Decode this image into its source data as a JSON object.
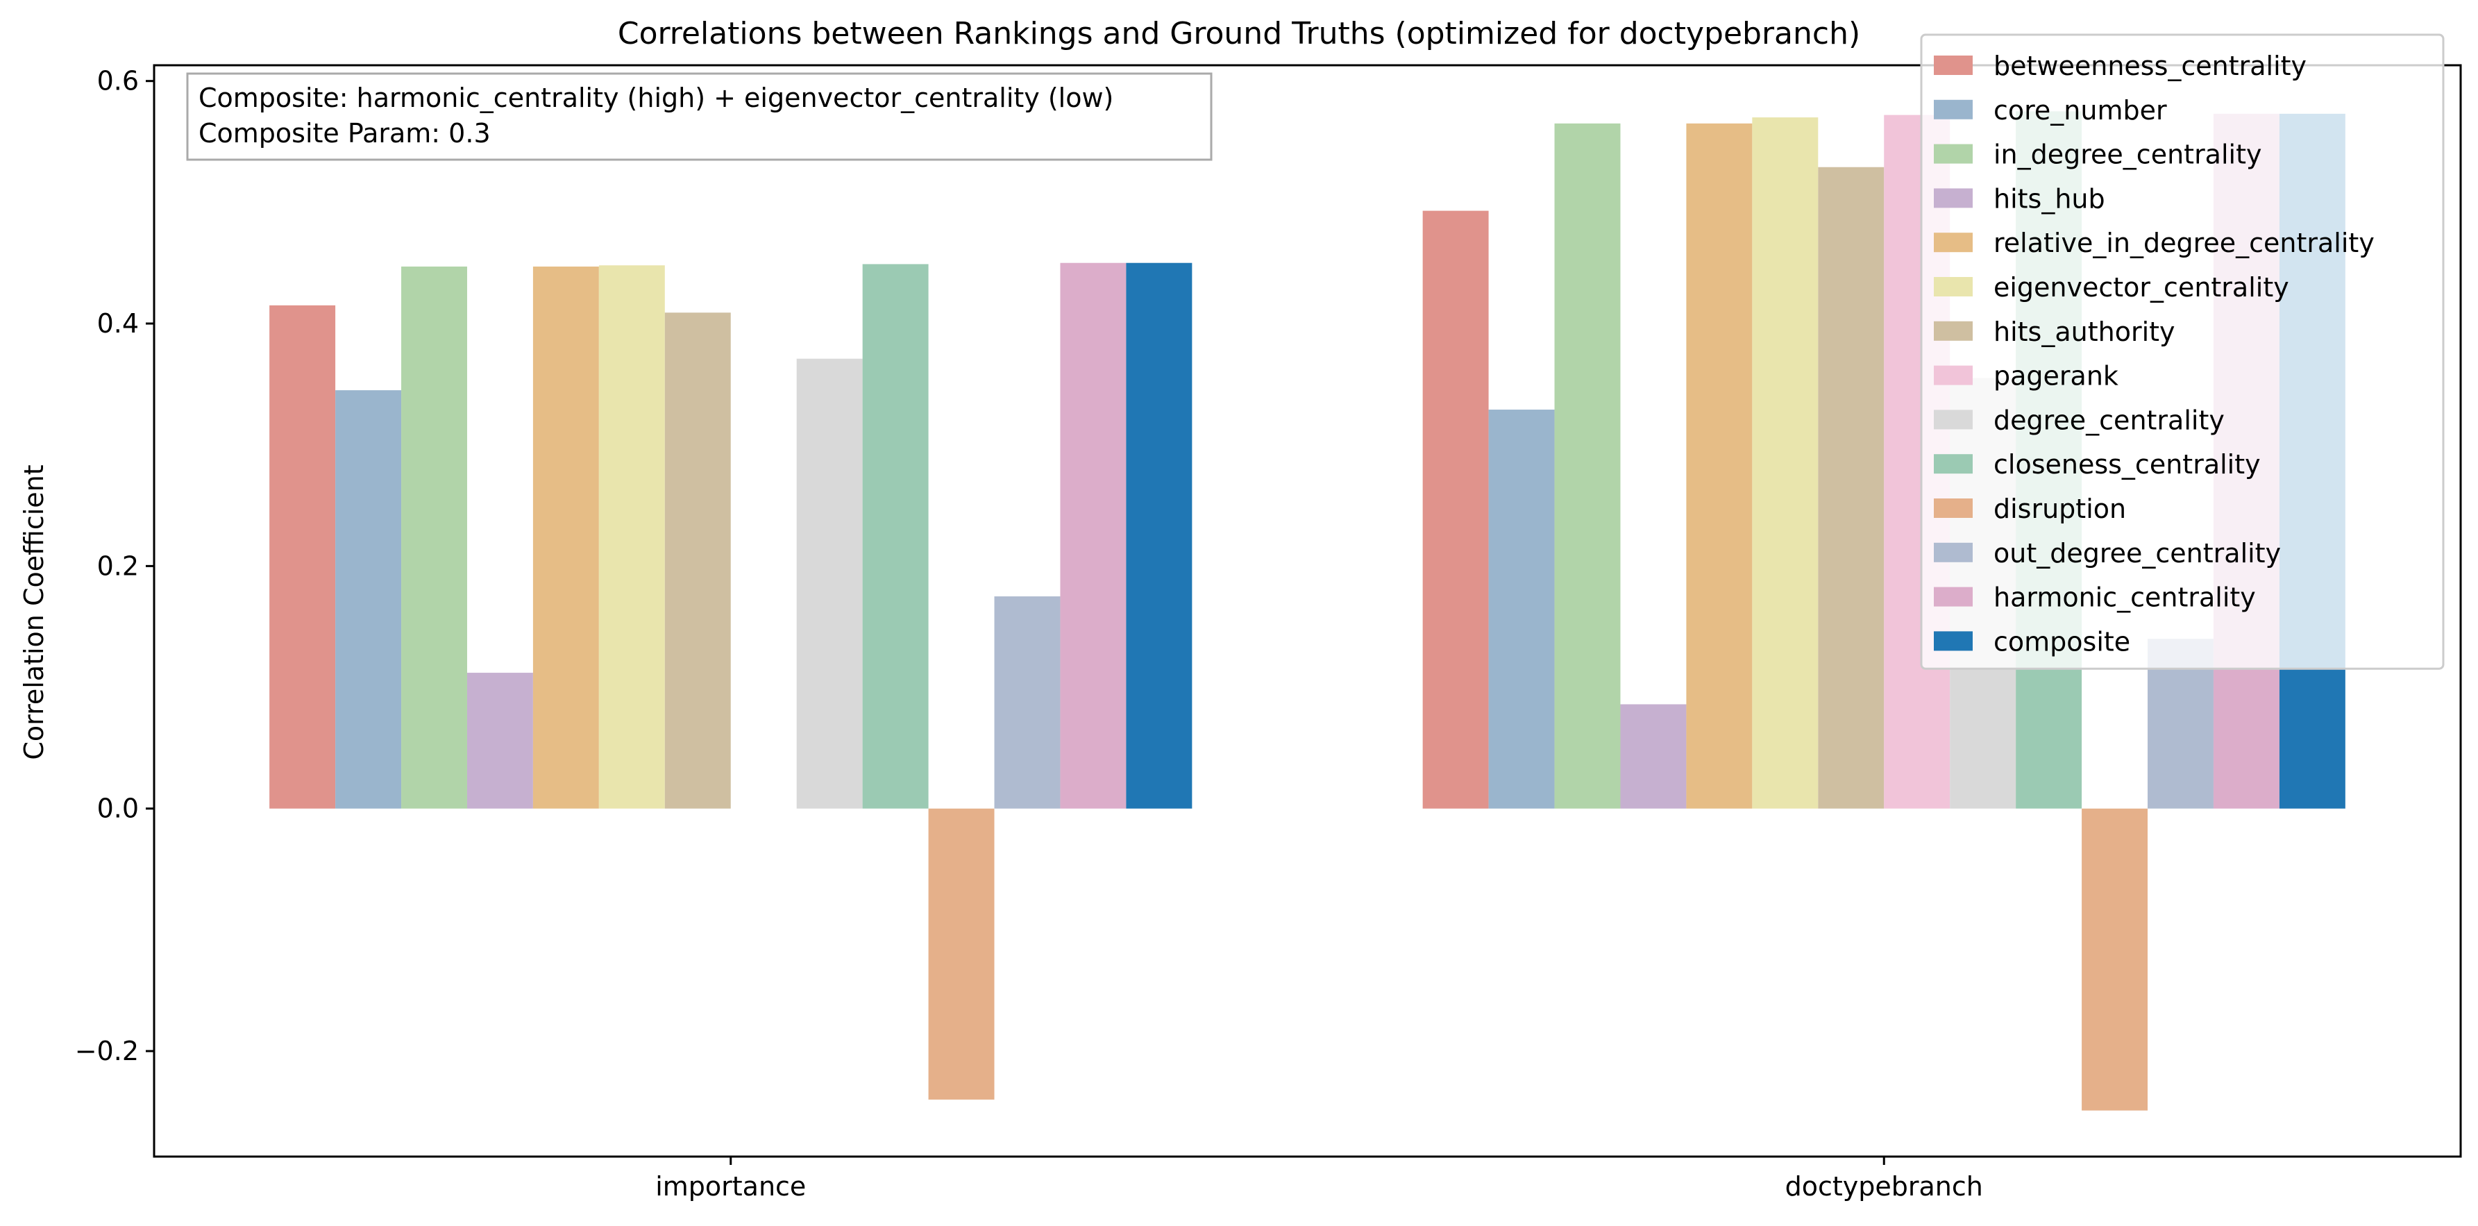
{
  "chart_data": {
    "type": "bar",
    "title": "Correlations between Rankings and Ground Truths (optimized for doctypebranch)",
    "xlabel": "",
    "ylabel": "Correlation Coefficient",
    "categories": [
      "importance",
      "doctypebranch"
    ],
    "ylim": [
      -0.287,
      0.613
    ],
    "yticks": [
      -0.2,
      0.0,
      0.2,
      0.4,
      0.6
    ],
    "ytick_labels": [
      "−0.2",
      "0.0",
      "0.2",
      "0.4",
      "0.6"
    ],
    "grid": false,
    "legend_position": "top-right",
    "annotation": {
      "lines": [
        "Composite: harmonic_centrality (high) + eigenvector_centrality (low)",
        "Composite Param: 0.3"
      ]
    },
    "series": [
      {
        "name": "betweenness_centrality",
        "color": "#e0938c",
        "values": [
          0.415,
          0.493
        ]
      },
      {
        "name": "core_number",
        "color": "#9ab5cd",
        "values": [
          0.345,
          0.329
        ]
      },
      {
        "name": "in_degree_centrality",
        "color": "#b1d4a9",
        "values": [
          0.447,
          0.565
        ]
      },
      {
        "name": "hits_hub",
        "color": "#c6b0d0",
        "values": [
          0.112,
          0.086
        ]
      },
      {
        "name": "relative_in_degree_centrality",
        "color": "#e6bd86",
        "values": [
          0.447,
          0.565
        ]
      },
      {
        "name": "eigenvector_centrality",
        "color": "#e9e5ad",
        "values": [
          0.448,
          0.57
        ]
      },
      {
        "name": "hits_authority",
        "color": "#cfbfa1",
        "values": [
          0.409,
          0.529
        ]
      },
      {
        "name": "pagerank",
        "color": "#f1c4d9",
        "values": [
          0.0,
          0.572
        ]
      },
      {
        "name": "degree_centrality",
        "color": "#d9d9d9",
        "values": [
          0.371,
          0.355
        ]
      },
      {
        "name": "closeness_centrality",
        "color": "#9bcab3",
        "values": [
          0.449,
          0.575
        ]
      },
      {
        "name": "disruption",
        "color": "#e5b08a",
        "values": [
          -0.24,
          -0.249
        ]
      },
      {
        "name": "out_degree_centrality",
        "color": "#afbbd0",
        "values": [
          0.175,
          0.14
        ]
      },
      {
        "name": "harmonic_centrality",
        "color": "#dcadca",
        "values": [
          0.45,
          0.573
        ]
      },
      {
        "name": "composite",
        "color": "#2077b4",
        "values": [
          0.45,
          0.573
        ]
      }
    ]
  }
}
